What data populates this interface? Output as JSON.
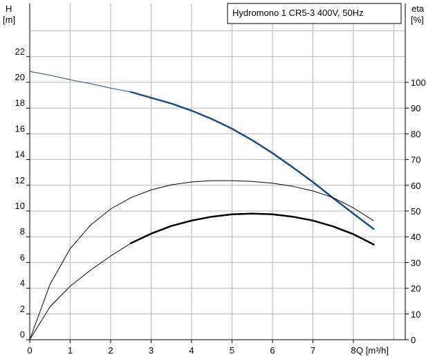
{
  "chart_data": {
    "type": "line",
    "title": "Hydromono 1 CR5-3 400V, 50Hz",
    "x_axis": {
      "label": "Q [m³/h]",
      "range": [
        0,
        9
      ],
      "ticks": [
        0,
        1,
        2,
        3,
        4,
        5,
        6,
        7,
        8
      ]
    },
    "y_left": {
      "label_line1": "H",
      "label_line2": "[m]",
      "range": [
        0,
        24
      ],
      "ticks": [
        0,
        2,
        4,
        6,
        8,
        10,
        12,
        14,
        16,
        18,
        20,
        22
      ]
    },
    "y_right": {
      "label_line1": "eta",
      "label_line2": "[%]",
      "range": [
        0,
        120
      ],
      "ticks": [
        0,
        10,
        20,
        30,
        40,
        50,
        60,
        70,
        80,
        90,
        100
      ]
    },
    "grid": true,
    "colors": {
      "head": "#1a4f86",
      "efficiency": "#000000",
      "grid": "#b4b4b4"
    },
    "series": [
      {
        "axis": "left",
        "color": "#1a4f86",
        "points": [
          [
            0,
            20.85
          ],
          [
            0.5,
            20.55
          ],
          [
            1,
            20.2
          ],
          [
            1.5,
            19.9
          ],
          [
            2,
            19.55
          ],
          [
            2.5,
            19.25
          ],
          [
            3,
            18.8
          ],
          [
            3.5,
            18.35
          ],
          [
            4,
            17.8
          ],
          [
            4.5,
            17.15
          ],
          [
            5,
            16.4
          ],
          [
            5.5,
            15.5
          ],
          [
            6,
            14.5
          ],
          [
            6.5,
            13.4
          ],
          [
            7,
            12.25
          ],
          [
            7.5,
            11.0
          ],
          [
            8,
            9.8
          ],
          [
            8.5,
            8.6
          ]
        ],
        "bold_from_x": 2.5
      },
      {
        "axis": "right",
        "color": "#000000",
        "points": [
          [
            0,
            0
          ],
          [
            0.5,
            21.5
          ],
          [
            1,
            35.4
          ],
          [
            1.5,
            44.5
          ],
          [
            2,
            50.8
          ],
          [
            2.5,
            55.2
          ],
          [
            3,
            58.2
          ],
          [
            3.5,
            60.2
          ],
          [
            4,
            61.3
          ],
          [
            4.5,
            61.8
          ],
          [
            5,
            61.8
          ],
          [
            5.5,
            61.5
          ],
          [
            6,
            60.8
          ],
          [
            6.5,
            59.6
          ],
          [
            7,
            57.8
          ],
          [
            7.5,
            55.2
          ],
          [
            8,
            51.2
          ],
          [
            8.5,
            46.2
          ]
        ],
        "bold_from_x": null
      },
      {
        "axis": "right",
        "color": "#000000",
        "points": [
          [
            0,
            0
          ],
          [
            0.5,
            12.8
          ],
          [
            1,
            20.8
          ],
          [
            1.5,
            27.0
          ],
          [
            2,
            32.5
          ],
          [
            2.5,
            37.5
          ],
          [
            3,
            41.2
          ],
          [
            3.5,
            44.2
          ],
          [
            4,
            46.3
          ],
          [
            4.5,
            47.8
          ],
          [
            5,
            48.7
          ],
          [
            5.5,
            49.0
          ],
          [
            6,
            48.7
          ],
          [
            6.5,
            47.8
          ],
          [
            7,
            46.3
          ],
          [
            7.5,
            44.0
          ],
          [
            8,
            41.0
          ],
          [
            8.5,
            37.0
          ]
        ],
        "bold_from_x": 2.5
      }
    ]
  }
}
